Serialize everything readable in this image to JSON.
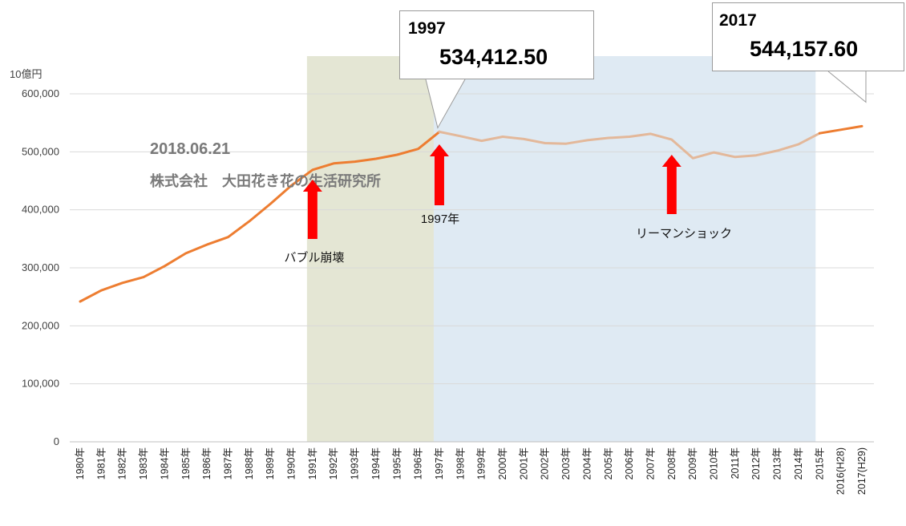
{
  "chart_data": {
    "type": "line",
    "unit_label": "10億円",
    "ylim": [
      0,
      600000
    ],
    "y_ticks": [
      "0",
      "100,000",
      "200,000",
      "300,000",
      "400,000",
      "500,000",
      "600,000"
    ],
    "grid": true,
    "categories": [
      "1980年",
      "1981年",
      "1982年",
      "1983年",
      "1984年",
      "1985年",
      "1986年",
      "1987年",
      "1988年",
      "1989年",
      "1990年",
      "1991年",
      "1992年",
      "1993年",
      "1994年",
      "1995年",
      "1996年",
      "1997年",
      "1998年",
      "1999年",
      "2000年",
      "2001年",
      "2002年",
      "2003年",
      "2004年",
      "2005年",
      "2006年",
      "2007年",
      "2008年",
      "2009年",
      "2010年",
      "2011年",
      "2012年",
      "2013年",
      "2014年",
      "2015年",
      "2016(H28)",
      "2017(H29)"
    ],
    "series": [
      {
        "values": [
          242000,
          261000,
          274000,
          284000,
          303000,
          325000,
          340000,
          353000,
          380000,
          410000,
          442000,
          469000,
          480000,
          483000,
          488000,
          495000,
          505000,
          534412.5,
          527000,
          519000,
          526000,
          522000,
          515000,
          514000,
          520000,
          524000,
          526000,
          531000,
          521000,
          489000,
          499000,
          491000,
          494000,
          502000,
          513000,
          532000,
          538000,
          544157.6
        ],
        "colors": {
          "bright": "#ED7D31",
          "faded": "#E3B89A"
        }
      }
    ],
    "shaded_regions": [
      {
        "from": "1991年",
        "to": "1997年",
        "color": "#E4E6D4"
      },
      {
        "from": "1997年",
        "to": "2015年",
        "color": "#DFEAF3"
      }
    ],
    "annotations": [
      {
        "category": "1991年",
        "label": "バブル崩壊",
        "arrow_color": "#FF0000"
      },
      {
        "category": "1997年",
        "label": "1997年",
        "arrow_color": "#FF0000"
      },
      {
        "category": "2008年",
        "label": "リーマンショック",
        "arrow_color": "#FF0000"
      }
    ],
    "callouts": [
      {
        "year": "1997",
        "value": "534,412.50",
        "category": "1997年"
      },
      {
        "year": "2017",
        "value": "544,157.60",
        "category": "2017(H29)"
      }
    ]
  },
  "watermark": {
    "date": "2018.06.21",
    "org": "株式会社　大田花き花の生活研究所"
  }
}
